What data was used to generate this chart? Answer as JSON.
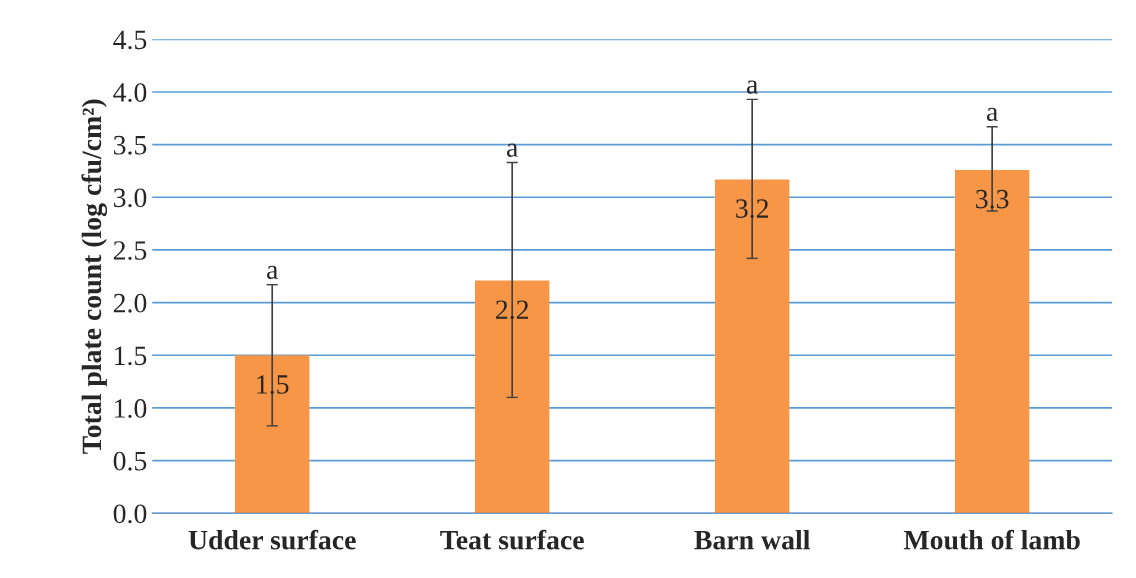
{
  "chart_data": {
    "type": "bar",
    "ylabel": "Total plate count (log cfu/cm²)",
    "categories": [
      "Udder surface",
      "Teat surface",
      "Barn wall",
      "Mouth of lamb"
    ],
    "values": [
      1.5,
      2.21,
      3.17,
      3.26
    ],
    "value_labels": [
      "1.5",
      "2.2",
      "3.2",
      "3.3"
    ],
    "errors": [
      [
        0.83,
        2.17
      ],
      [
        1.1,
        3.33
      ],
      [
        2.42,
        3.93
      ],
      [
        2.87,
        3.67
      ]
    ],
    "color": "#f79646",
    "ylim": [
      0,
      4.5
    ],
    "yticks": [
      {
        "value": 0,
        "label": "0.0"
      },
      {
        "value": 0.5,
        "label": "0.5"
      },
      {
        "value": 1,
        "label": "1.0"
      },
      {
        "value": 1.5,
        "label": "1.5"
      },
      {
        "value": 2,
        "label": "2.0"
      },
      {
        "value": 2.5,
        "label": "2.5"
      },
      {
        "value": 3,
        "label": "3.0"
      },
      {
        "value": 3.5,
        "label": "3.5"
      },
      {
        "value": 4,
        "label": "4.0"
      },
      {
        "value": 4.5,
        "label": "4.5"
      }
    ],
    "grid": "y",
    "annotations": [
      {
        "text": "a",
        "x": "Udder surface",
        "y": 2.17
      },
      {
        "text": "a",
        "x": "Teat surface",
        "y": 3.33
      },
      {
        "text": "a",
        "x": "Barn wall",
        "y": 3.93
      },
      {
        "text": "a",
        "x": "Mouth of lamb",
        "y": 3.67
      }
    ]
  }
}
